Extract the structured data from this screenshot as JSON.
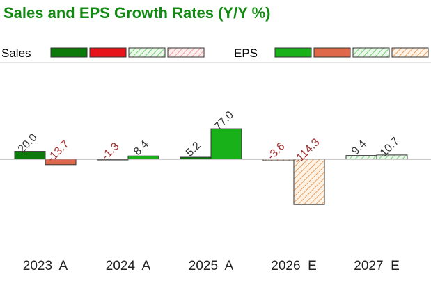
{
  "chart_data": {
    "type": "bar",
    "title": "Sales and EPS Growth Rates (Y/Y %)",
    "categories": [
      "2023  A",
      "2024  A",
      "2025  A",
      "2026  E",
      "2027  E"
    ],
    "series": [
      {
        "name": "Sales",
        "values": [
          20.0,
          -1.3,
          5.2,
          -3.6,
          9.4
        ]
      },
      {
        "name": "EPS",
        "values": [
          -13.7,
          8.4,
          77.0,
          -114.3,
          10.7
        ]
      }
    ],
    "estimate_flags": [
      false,
      false,
      false,
      true,
      true
    ],
    "legend_groups": [
      {
        "label": "Sales",
        "swatches": [
          "sales-positive",
          "sales-negative",
          "sales-estimate-positive",
          "sales-estimate-negative"
        ]
      },
      {
        "label": "EPS",
        "swatches": [
          "eps-positive",
          "eps-negative",
          "eps-estimate-positive",
          "eps-estimate-negative"
        ]
      }
    ],
    "legend_position": "top",
    "ylim": [
      -120,
      85
    ],
    "grid": false,
    "colors": {
      "sales_positive": "#0b7a0b",
      "sales_negative": "#e8141b",
      "eps_positive": "#19b119",
      "eps_negative": "#e0684a",
      "estimate_positive_hatch": "#7ccc7c",
      "estimate_negative_hatch": "#e9a060",
      "label_positive": "#333333",
      "label_negative": "#a33030",
      "title": "#128a12"
    }
  }
}
